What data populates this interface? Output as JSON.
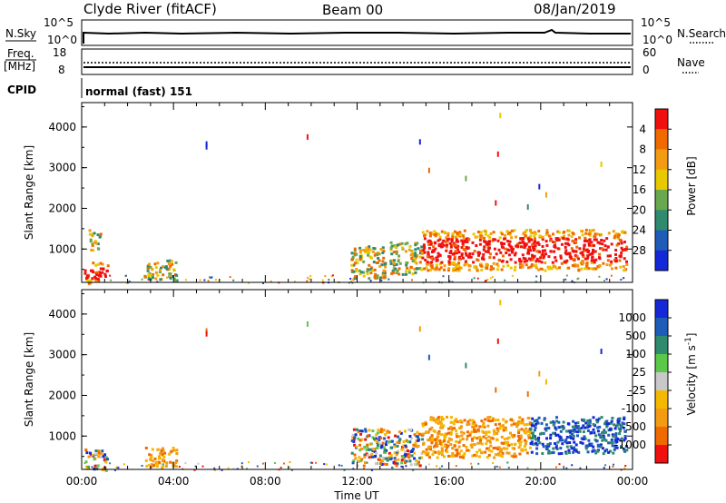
{
  "header": {
    "station": "Clyde River (fitACF)",
    "beam": "Beam 00",
    "date": "08/Jan/2019"
  },
  "noise_panel": {
    "left_label": "N.Sky",
    "right_label": "N.Search",
    "left_ticks": [
      "10^5",
      "10^0"
    ],
    "right_ticks": [
      "10^5",
      "10^0"
    ]
  },
  "freq_panel": {
    "left_label_1": "Freq.",
    "left_label_2": "[MHz]",
    "right_label": "Nave",
    "left_ticks": [
      "18",
      "8"
    ],
    "right_ticks": [
      "60",
      "0"
    ]
  },
  "cpid_panel": {
    "label": "CPID",
    "text": "normal (fast) 151"
  },
  "chart_data": [
    {
      "type": "heatmap",
      "name": "power",
      "ylabel": "Slant Range [km]",
      "ytick_labels": [
        "1000",
        "2000",
        "3000",
        "4000"
      ],
      "yticks": [
        1000,
        2000,
        3000,
        4000
      ],
      "ylim": [
        180,
        4600
      ],
      "xlim": [
        0,
        24
      ],
      "colorbar": {
        "label": "Power [dB]",
        "tick_labels": [
          "4",
          "8",
          "12",
          "16",
          "20",
          "24",
          "28"
        ],
        "colors": [
          "#1428d8",
          "#1f5cb8",
          "#2f8a6e",
          "#6aa84f",
          "#e8c800",
          "#f39c12",
          "#f06a00",
          "#f01010"
        ]
      },
      "features": [
        {
          "t_start": 0.1,
          "t_end": 1.1,
          "r_low": 180,
          "r_high": 700,
          "level": "strong"
        },
        {
          "t_start": 0.3,
          "t_end": 0.8,
          "r_low": 1000,
          "r_high": 1500,
          "level": "moderate"
        },
        {
          "t_start": 2.7,
          "t_end": 4.1,
          "r_low": 250,
          "r_high": 750,
          "level": "moderate"
        },
        {
          "t_start": 11.7,
          "t_end": 13.2,
          "r_low": 300,
          "r_high": 1100,
          "level": "moderate"
        },
        {
          "t_start": 13.4,
          "t_end": 14.8,
          "r_low": 400,
          "r_high": 1200,
          "level": "moderate"
        },
        {
          "t_start": 14.8,
          "t_end": 23.7,
          "r_low": 500,
          "r_high": 1500,
          "level": "strong"
        }
      ]
    },
    {
      "type": "heatmap",
      "name": "velocity",
      "ylabel": "Slant Range [km]",
      "ytick_labels": [
        "1000",
        "2000",
        "3000",
        "4000"
      ],
      "yticks": [
        1000,
        2000,
        3000,
        4000
      ],
      "ylim": [
        180,
        4600
      ],
      "xlim": [
        0,
        24
      ],
      "xtick_labels": [
        "00:00",
        "04:00",
        "08:00",
        "12:00",
        "16:00",
        "20:00",
        "00:00"
      ],
      "xticks": [
        0,
        4,
        8,
        12,
        16,
        20,
        24
      ],
      "xlabel": "Time UT",
      "colorbar": {
        "label": "Velocity [m s^-1]",
        "tick_labels": [
          "1000",
          "500",
          "100",
          "25",
          "-25",
          "-100",
          "-500",
          "-1000"
        ],
        "colors": [
          "#1428d8",
          "#1f5cb8",
          "#2f8a6e",
          "#5cc84a",
          "#c8c8c8",
          "#f5b800",
          "#f39c12",
          "#f06a00",
          "#f01010"
        ]
      },
      "features": [
        {
          "t_start": 0.1,
          "t_end": 1.1,
          "r_low": 180,
          "r_high": 700,
          "sign": "mixed"
        },
        {
          "t_start": 2.7,
          "t_end": 4.1,
          "r_low": 250,
          "r_high": 750,
          "sign": "negative"
        },
        {
          "t_start": 11.7,
          "t_end": 14.8,
          "r_low": 300,
          "r_high": 1200,
          "sign": "mixed"
        },
        {
          "t_start": 14.8,
          "t_end": 19.5,
          "r_low": 500,
          "r_high": 1500,
          "sign": "negative"
        },
        {
          "t_start": 19.5,
          "t_end": 23.7,
          "r_low": 600,
          "r_high": 1500,
          "sign": "positive"
        }
      ]
    }
  ]
}
